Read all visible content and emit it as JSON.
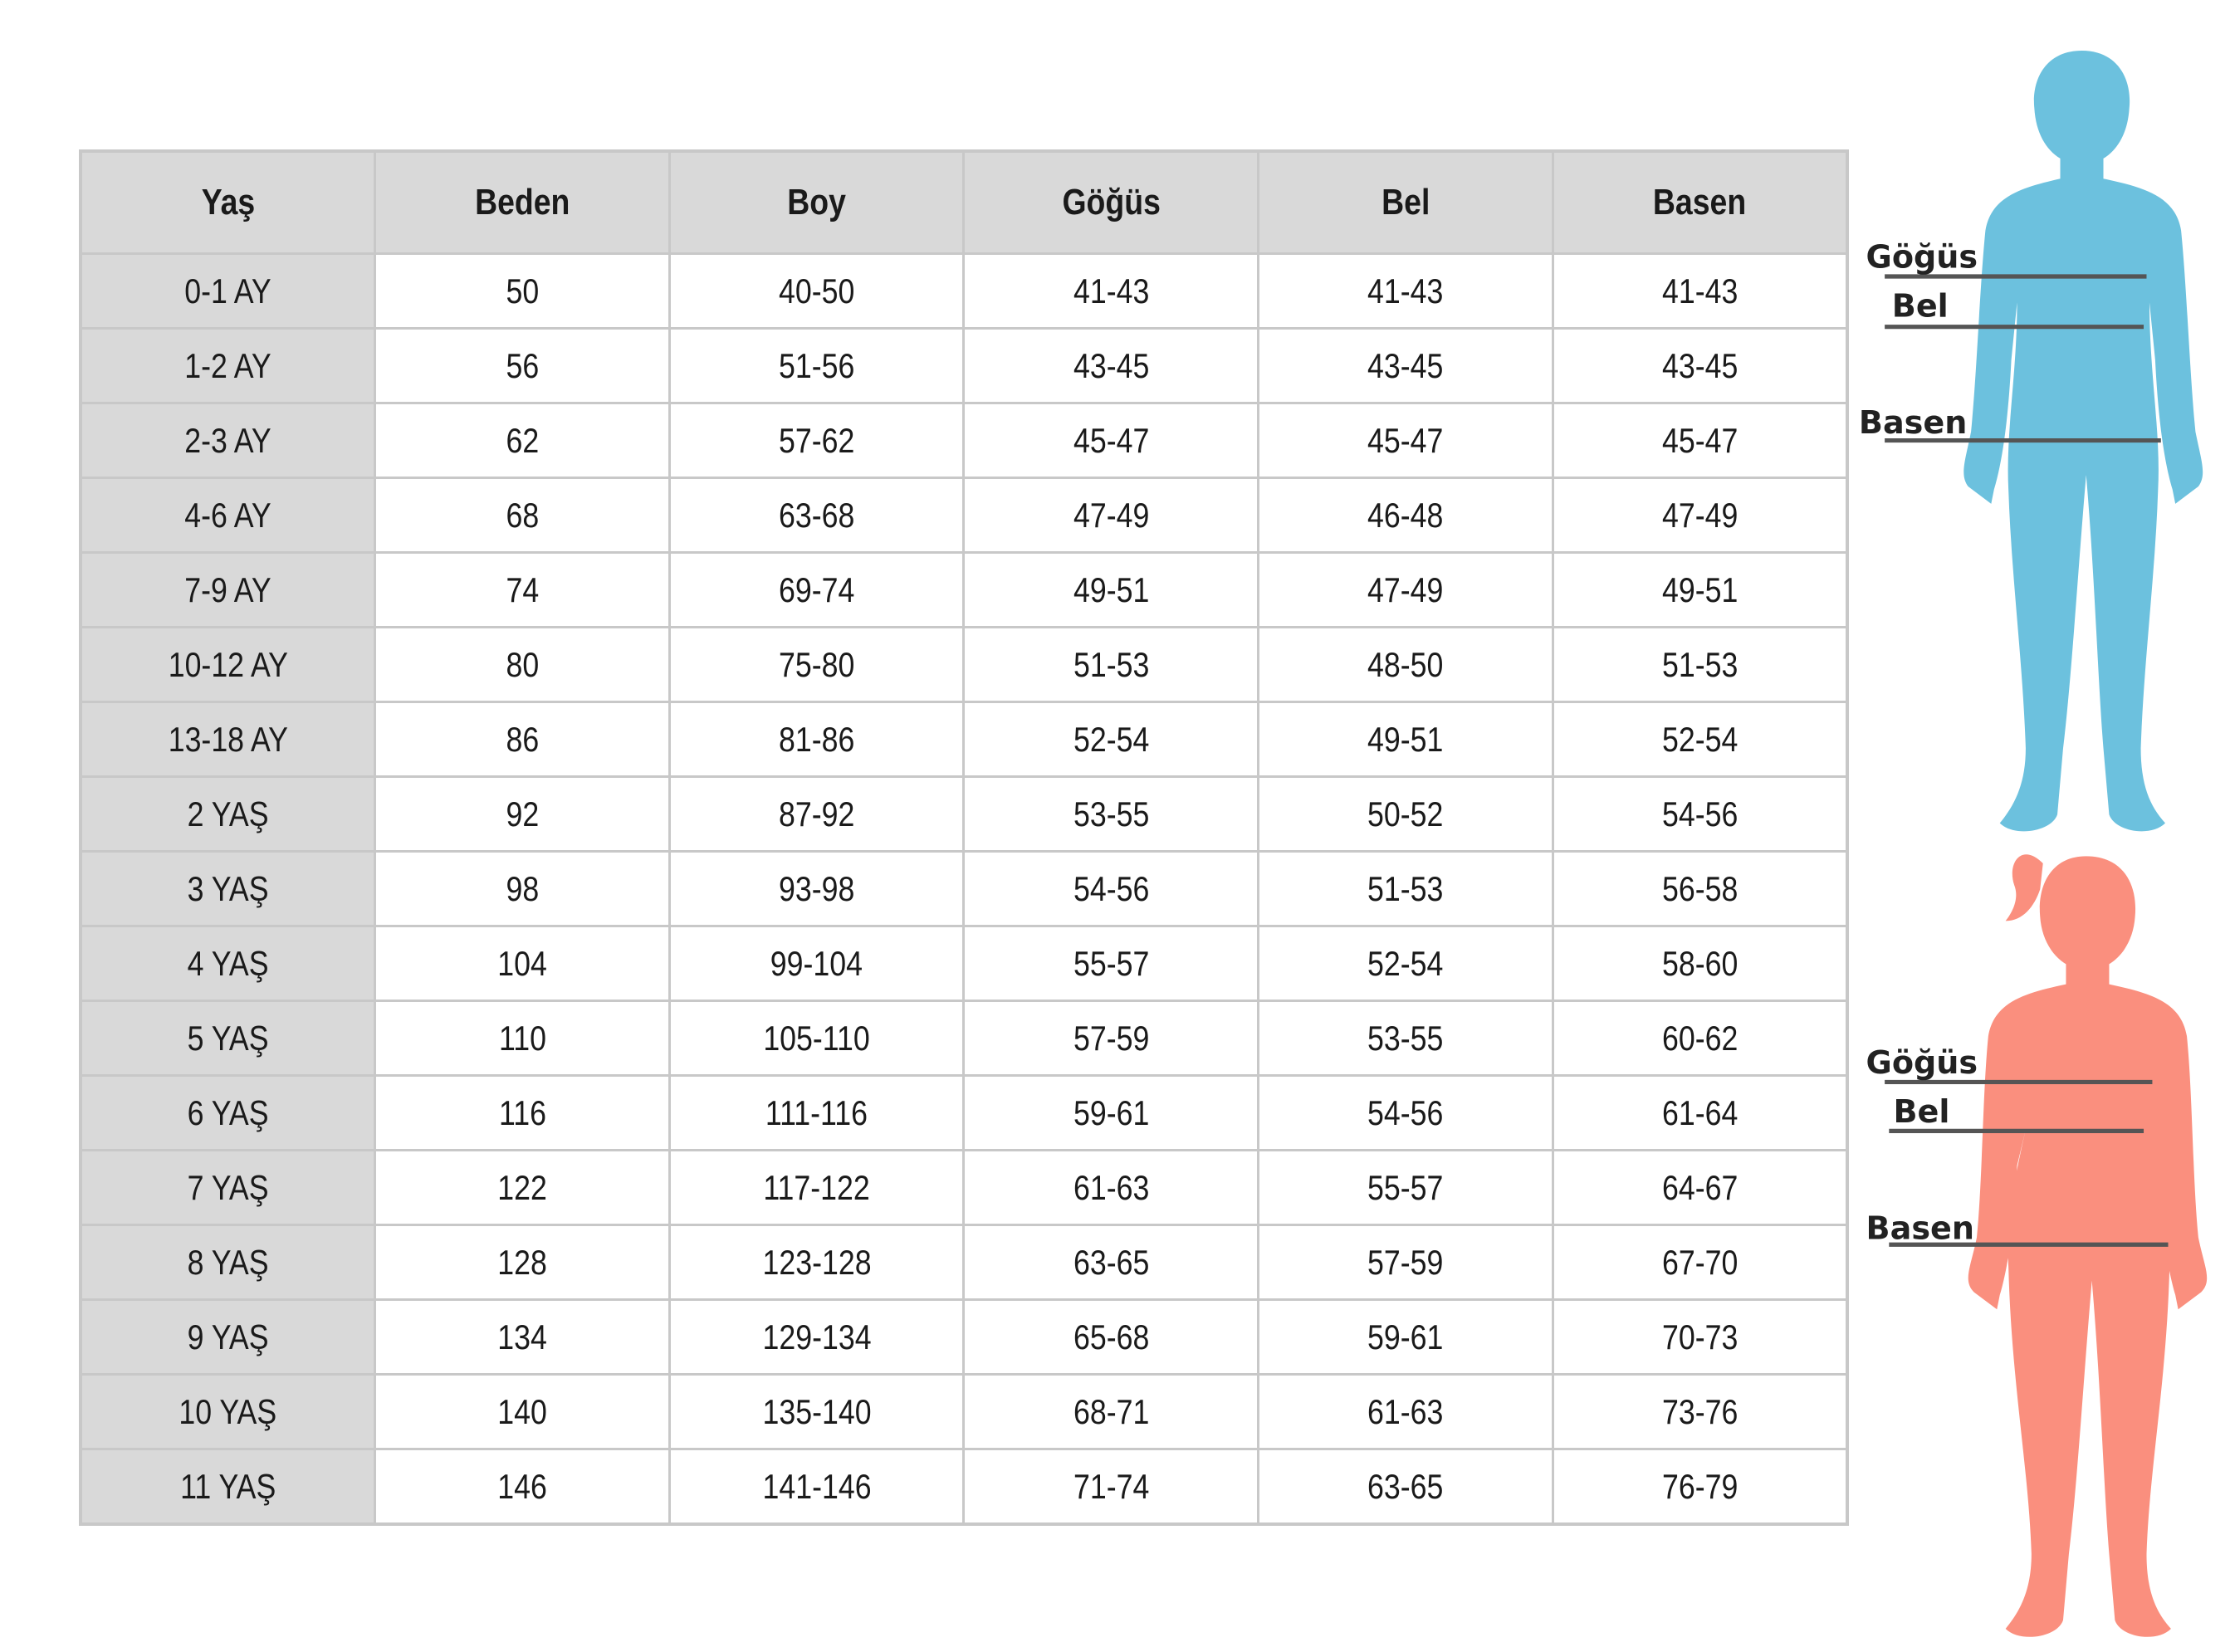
{
  "table": {
    "headers": [
      "Yaş",
      "Beden",
      "Boy",
      "Göğüs",
      "Bel",
      "Basen"
    ],
    "rows": [
      [
        "0-1 AY",
        "50",
        "40-50",
        "41-43",
        "41-43",
        "41-43"
      ],
      [
        "1-2 AY",
        "56",
        "51-56",
        "43-45",
        "43-45",
        "43-45"
      ],
      [
        "2-3 AY",
        "62",
        "57-62",
        "45-47",
        "45-47",
        "45-47"
      ],
      [
        "4-6 AY",
        "68",
        "63-68",
        "47-49",
        "46-48",
        "47-49"
      ],
      [
        "7-9 AY",
        "74",
        "69-74",
        "49-51",
        "47-49",
        "49-51"
      ],
      [
        "10-12 AY",
        "80",
        "75-80",
        "51-53",
        "48-50",
        "51-53"
      ],
      [
        "13-18 AY",
        "86",
        "81-86",
        "52-54",
        "49-51",
        "52-54"
      ],
      [
        "2 YAŞ",
        "92",
        "87-92",
        "53-55",
        "50-52",
        "54-56"
      ],
      [
        "3 YAŞ",
        "98",
        "93-98",
        "54-56",
        "51-53",
        "56-58"
      ],
      [
        "4 YAŞ",
        "104",
        "99-104",
        "55-57",
        "52-54",
        "58-60"
      ],
      [
        "5 YAŞ",
        "110",
        "105-110",
        "57-59",
        "53-55",
        "60-62"
      ],
      [
        "6 YAŞ",
        "116",
        "111-116",
        "59-61",
        "54-56",
        "61-64"
      ],
      [
        "7 YAŞ",
        "122",
        "117-122",
        "61-63",
        "55-57",
        "64-67"
      ],
      [
        "8 YAŞ",
        "128",
        "123-128",
        "63-65",
        "57-59",
        "67-70"
      ],
      [
        "9 YAŞ",
        "134",
        "129-134",
        "65-68",
        "59-61",
        "70-73"
      ],
      [
        "10 YAŞ",
        "140",
        "135-140",
        "68-71",
        "61-63",
        "73-76"
      ],
      [
        "11 YAŞ",
        "146",
        "141-146",
        "71-74",
        "63-65",
        "76-79"
      ]
    ]
  },
  "figures": {
    "boy": {
      "color": "#6cc1de",
      "labels": {
        "chest": "Göğüs",
        "waist": "Bel",
        "hip": "Basen"
      }
    },
    "girl": {
      "color": "#fa8f7e",
      "labels": {
        "chest": "Göğüs",
        "waist": "Bel",
        "hip": "Basen"
      }
    },
    "line_color": "#555555"
  }
}
